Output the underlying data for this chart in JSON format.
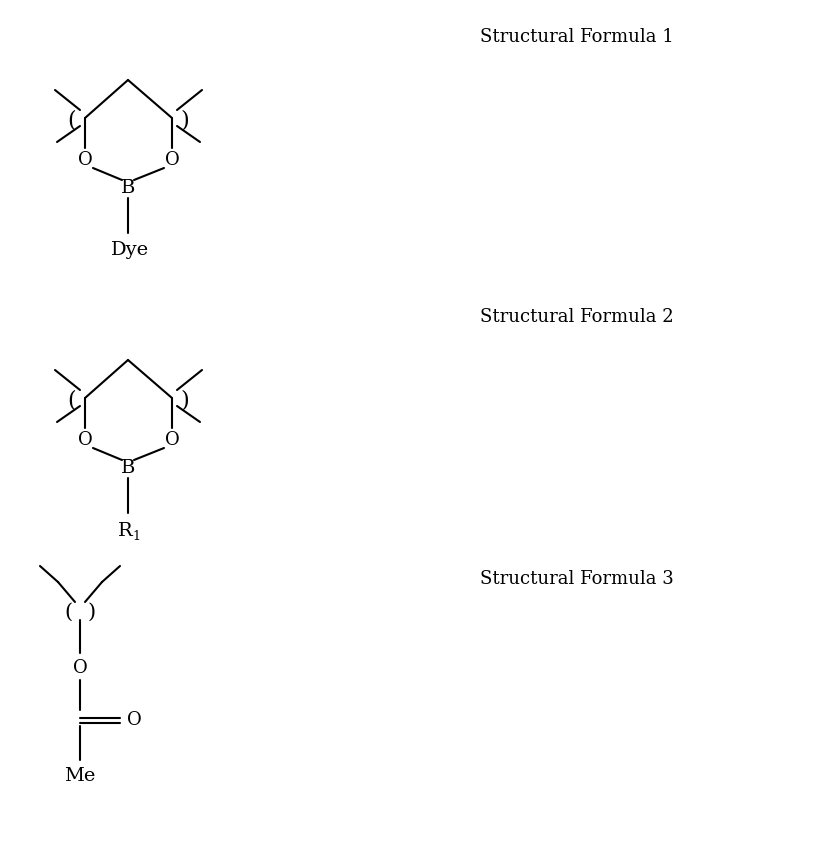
{
  "bg_color": "#ffffff",
  "line_color": "#000000",
  "text_color": "#000000",
  "figsize": [
    8.26,
    8.43
  ],
  "dpi": 100,
  "label_sf1": "Structural Formula 1",
  "label_sf2": "Structural Formula 2",
  "label_sf3": "Structural Formula 3",
  "font_size_labels": 13,
  "font_size_atoms": 13,
  "font_size_dye": 14
}
